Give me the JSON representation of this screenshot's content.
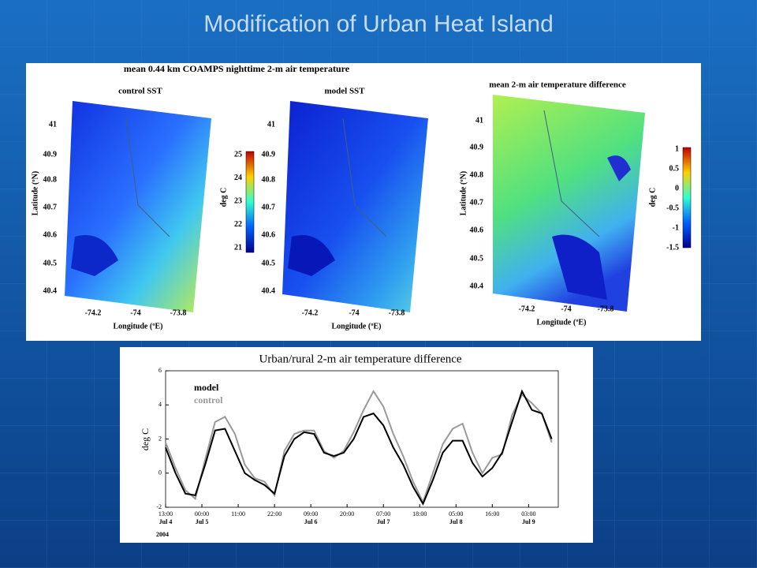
{
  "title": "Modification of Urban Heat Island",
  "maps": {
    "title": "mean 0.44 km COAMPS nighttime 2-m air temperature",
    "panels": [
      {
        "subtitle": "control SST",
        "ylabel": "Latitude (ºN)",
        "xlabel": "Longitude (ºE)"
      },
      {
        "subtitle": "model SST",
        "xlabel": "Longitude (ºE)"
      },
      {
        "subtitle": "mean 2-m air temperature difference",
        "ylabel": "Latitude (ºN)",
        "xlabel": "Longitude (ºE)"
      }
    ],
    "lat_ticks": [
      "41",
      "40.9",
      "40.8",
      "40.7",
      "40.6",
      "40.5",
      "40.4"
    ],
    "lon_ticks": [
      "-74.2",
      "-74",
      "-73.8"
    ],
    "colorbar_left": {
      "label": "deg C",
      "ticks": [
        "25",
        "24",
        "23",
        "22",
        "21"
      ]
    },
    "colorbar_right": {
      "label": "deg C",
      "ticks": [
        "1",
        "0.5",
        "0",
        "-0.5",
        "-1",
        "-1.5"
      ]
    }
  },
  "chart_data": {
    "type": "line",
    "title": "Urban/rural 2-m air temperature difference",
    "ylabel": "deg C",
    "year_label": "2004",
    "x": [
      0,
      3,
      6,
      9,
      12,
      15,
      18,
      21,
      24,
      27,
      30,
      33,
      36,
      39,
      42,
      45,
      48,
      51,
      54,
      57,
      60,
      63,
      66,
      69,
      72,
      75,
      78,
      81,
      84,
      87,
      90,
      93,
      96,
      99,
      102,
      105,
      108,
      111,
      114,
      117
    ],
    "series": [
      {
        "name": "model",
        "color": "#000000",
        "values": [
          1.5,
          0.0,
          -1.2,
          -1.3,
          0.5,
          2.5,
          2.6,
          1.3,
          0.0,
          -0.4,
          -0.7,
          -1.2,
          1.0,
          2.0,
          2.4,
          2.3,
          1.2,
          1.0,
          1.2,
          2.0,
          3.3,
          3.5,
          2.8,
          1.5,
          0.5,
          -0.8,
          -1.8,
          -0.4,
          1.2,
          1.9,
          1.9,
          0.6,
          -0.2,
          0.3,
          1.2,
          3.0,
          4.8,
          3.7,
          3.5,
          2.0
        ]
      },
      {
        "name": "control",
        "color": "#999999",
        "values": [
          1.8,
          0.3,
          -1.0,
          -1.5,
          0.8,
          3.0,
          3.3,
          2.3,
          0.5,
          -0.3,
          -0.5,
          -1.3,
          1.3,
          2.3,
          2.5,
          2.5,
          1.3,
          0.9,
          1.3,
          2.4,
          3.7,
          4.8,
          3.9,
          2.3,
          1.0,
          -0.5,
          -1.7,
          0.0,
          1.7,
          2.6,
          2.9,
          1.2,
          0.0,
          0.9,
          1.1,
          3.4,
          4.6,
          4.1,
          3.5,
          1.8
        ]
      }
    ],
    "xlim": [
      0,
      119
    ],
    "xticks": [
      {
        "value": 0,
        "label": "13:00"
      },
      {
        "value": 11,
        "label": "00:00"
      },
      {
        "value": 22,
        "label": "11:00"
      },
      {
        "value": 33,
        "label": "22:00"
      },
      {
        "value": 44,
        "label": "09:00"
      },
      {
        "value": 55,
        "label": "20:00"
      },
      {
        "value": 66,
        "label": "07:00"
      },
      {
        "value": 77,
        "label": "18:00"
      },
      {
        "value": 88,
        "label": "05:00"
      },
      {
        "value": 99,
        "label": "16:00"
      },
      {
        "value": 110,
        "label": "03:00"
      }
    ],
    "date_labels": [
      {
        "value": 0,
        "label": "Jul 4"
      },
      {
        "value": 11,
        "label": "Jul 5"
      },
      {
        "value": 44,
        "label": "Jul 6"
      },
      {
        "value": 66,
        "label": "Jul 7"
      },
      {
        "value": 88,
        "label": "Jul 8"
      },
      {
        "value": 110,
        "label": "Jul 9"
      }
    ],
    "ylim": [
      -2,
      6
    ],
    "yticks": [
      -2,
      0,
      2,
      4,
      6
    ]
  }
}
